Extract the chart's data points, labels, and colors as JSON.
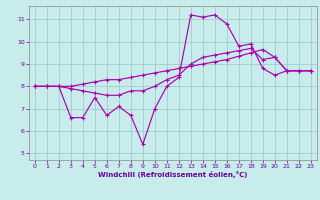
{
  "bg_color": "#c8ecec",
  "line_color": "#aa00aa",
  "grid_color": "#a0cccc",
  "xlabel": "Windchill (Refroidissement éolien,°C)",
  "xlabel_color": "#660099",
  "tick_color": "#660099",
  "spine_color": "#888888",
  "xlim": [
    -0.5,
    23.5
  ],
  "ylim": [
    4.7,
    11.6
  ],
  "yticks": [
    5,
    6,
    7,
    8,
    9,
    10,
    11
  ],
  "xticks": [
    0,
    1,
    2,
    3,
    4,
    5,
    6,
    7,
    8,
    9,
    10,
    11,
    12,
    13,
    14,
    15,
    16,
    17,
    18,
    19,
    20,
    21,
    22,
    23
  ],
  "line1_x": [
    0,
    1,
    2,
    3,
    4,
    5,
    6,
    7,
    8,
    9,
    10,
    11,
    12,
    13,
    14,
    15,
    16,
    17,
    18,
    19,
    20,
    21,
    22,
    23
  ],
  "line1_y": [
    8.0,
    8.0,
    8.0,
    7.9,
    7.8,
    7.7,
    7.6,
    7.6,
    7.8,
    7.8,
    8.0,
    8.3,
    8.5,
    9.0,
    9.3,
    9.4,
    9.5,
    9.6,
    9.7,
    9.2,
    9.3,
    8.7,
    8.7,
    8.7
  ],
  "line2_x": [
    0,
    1,
    2,
    3,
    4,
    5,
    6,
    7,
    8,
    9,
    10,
    11,
    12,
    13,
    14,
    15,
    16,
    17,
    18,
    19,
    20,
    21,
    22,
    23
  ],
  "line2_y": [
    8.0,
    8.0,
    8.0,
    6.6,
    6.6,
    7.5,
    6.7,
    7.1,
    6.7,
    5.4,
    7.0,
    8.0,
    8.4,
    11.2,
    11.1,
    11.2,
    10.8,
    9.8,
    9.9,
    8.8,
    8.5,
    8.7,
    8.7,
    8.7
  ],
  "line3_x": [
    0,
    1,
    2,
    3,
    4,
    5,
    6,
    7,
    8,
    9,
    10,
    11,
    12,
    13,
    14,
    15,
    16,
    17,
    18,
    19,
    20,
    21,
    22,
    23
  ],
  "line3_y": [
    8.0,
    8.0,
    8.0,
    8.0,
    8.1,
    8.2,
    8.3,
    8.3,
    8.4,
    8.5,
    8.6,
    8.7,
    8.8,
    8.9,
    9.0,
    9.1,
    9.2,
    9.35,
    9.5,
    9.65,
    9.3,
    8.7,
    8.7,
    8.7
  ]
}
